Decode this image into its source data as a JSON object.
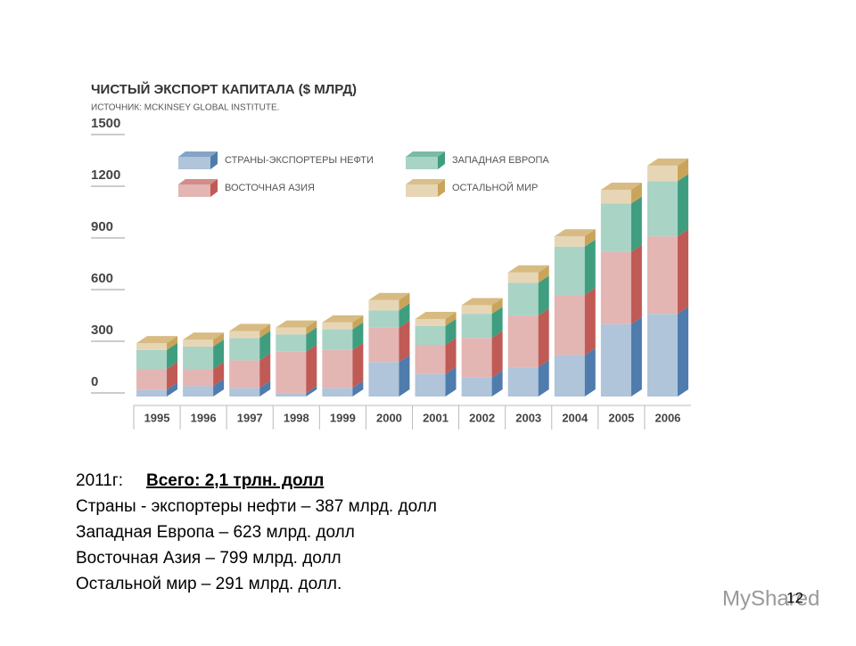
{
  "chart_data": {
    "type": "stacked-bar-3d",
    "title": "ЧИСТЫЙ ЭКСПОРТ КАПИТАЛА ($ МЛРД)",
    "subtitle": "ИСТОЧНИК: MCKINSEY GLOBAL INSTITUTE.",
    "categories": [
      "1995",
      "1996",
      "1997",
      "1998",
      "1999",
      "2000",
      "2001",
      "2002",
      "2003",
      "2004",
      "2005",
      "2006"
    ],
    "series": [
      {
        "name": "СТРАНЫ-ЭКСПОРТЕРЫ НЕФТИ",
        "color": "#4f7bad",
        "values": [
          40,
          60,
          50,
          20,
          50,
          200,
          130,
          110,
          170,
          240,
          420,
          480
        ]
      },
      {
        "name": "ВОСТОЧНАЯ АЗИЯ",
        "color": "#c05a55",
        "values": [
          120,
          100,
          160,
          240,
          220,
          200,
          170,
          230,
          300,
          350,
          420,
          450
        ]
      },
      {
        "name": "ЗАПАДНАЯ ЕВРОПА",
        "color": "#3f9e7f",
        "values": [
          110,
          130,
          130,
          100,
          120,
          100,
          110,
          140,
          190,
          280,
          280,
          320
        ]
      },
      {
        "name": "ОСТАЛЬНОЙ МИР",
        "color": "#c9a45a",
        "values": [
          40,
          40,
          40,
          40,
          40,
          60,
          40,
          50,
          60,
          60,
          80,
          90
        ]
      }
    ],
    "ylim": [
      0,
      1500
    ],
    "yticks": [
      0,
      300,
      600,
      900,
      1200,
      1500
    ],
    "grid": false
  },
  "notes": {
    "year": "2011г:",
    "total": "Всего: 2,1 трлн. долл",
    "lines": [
      "Страны - экспортеры нефти – 387 млрд. долл",
      "Западная Европа – 623 млрд. долл",
      "Восточная Азия – 799 млрд. долл",
      "Остальной мир – 291 млрд. долл."
    ]
  },
  "page_number": "12",
  "watermark": "MyShared"
}
